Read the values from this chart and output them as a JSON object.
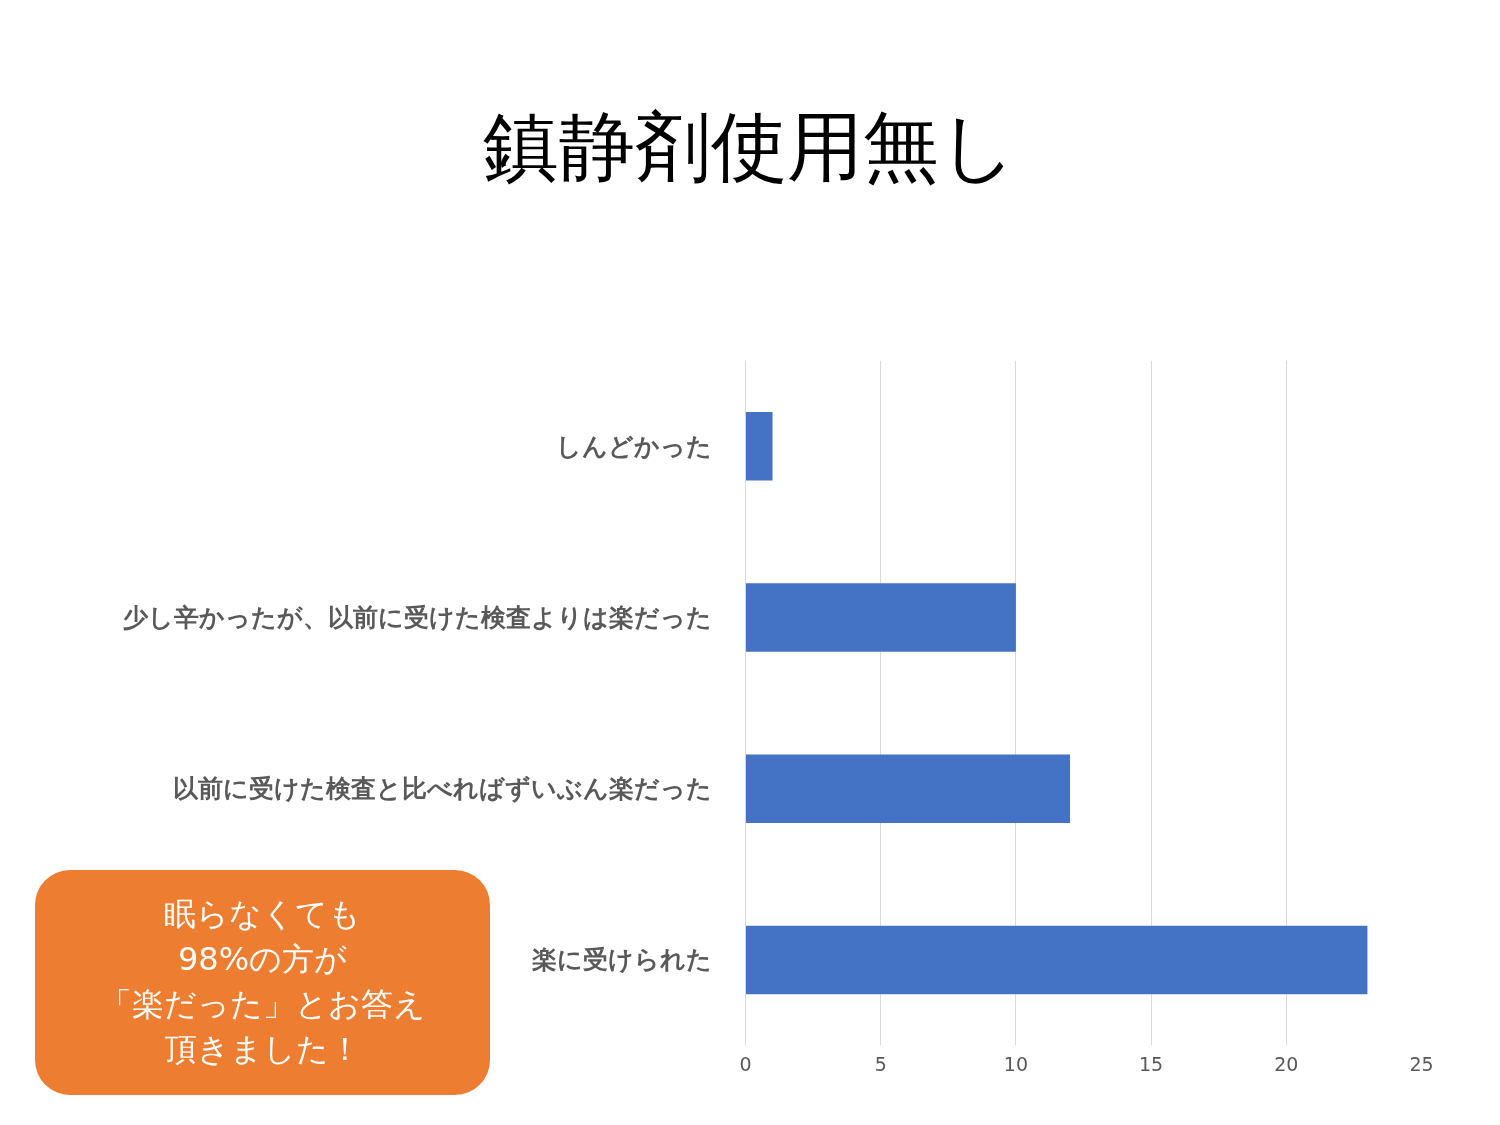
{
  "chart_data": {
    "type": "bar",
    "orientation": "horizontal",
    "title": "鎮静剤使用無し",
    "categories": [
      "しんどかった",
      "少し辛かったが、以前に受けた検査よりは楽だった",
      "以前に受けた検査と比べればずいぶん楽だった",
      "楽に受けられた"
    ],
    "values": [
      1,
      10,
      12,
      23
    ],
    "color": "#4472c4",
    "xlim": [
      0,
      25
    ],
    "xticks": [
      0,
      5,
      10,
      15,
      20,
      25
    ],
    "grid": "x",
    "annotations": [
      "眠らなくても",
      "98%の方が",
      "「楽だった」とお答え",
      "頂きました！"
    ]
  }
}
